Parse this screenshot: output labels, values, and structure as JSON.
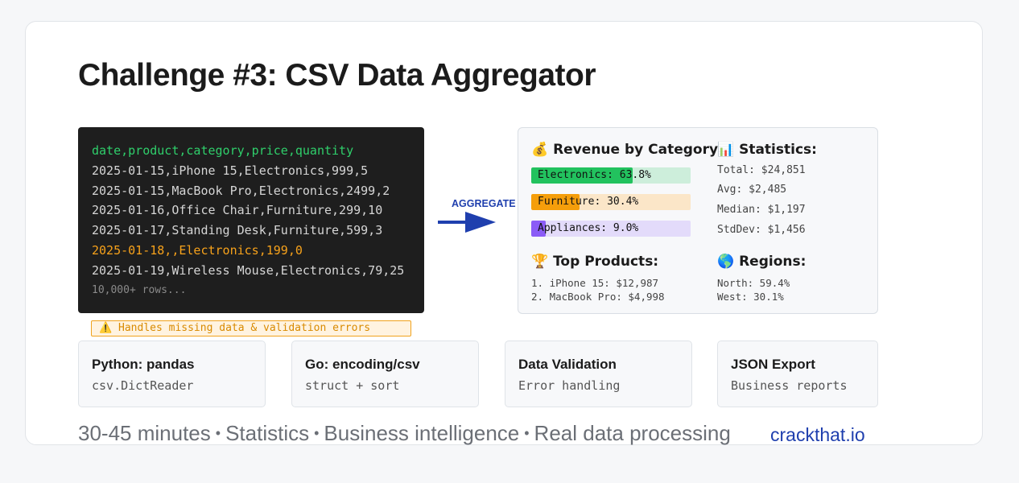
{
  "title": "Challenge #3: CSV Data Aggregator",
  "csv": {
    "header": "date,product,category,price,quantity",
    "rows": [
      "2025-01-15,iPhone 15,Electronics,999,5",
      "2025-01-15,MacBook Pro,Electronics,2499,2",
      "2025-01-16,Office Chair,Furniture,299,10",
      "2025-01-17,Standing Desk,Furniture,599,3"
    ],
    "error_row": "2025-01-18,,Electronics,199,0",
    "last_row": "2025-01-19,Wireless Mouse,Electronics,79,25",
    "more": "10,000+ rows..."
  },
  "warning": "⚠️ Handles missing data & validation errors",
  "arrow_label": "AGGREGATE",
  "panel": {
    "revenue_title": "💰 Revenue by Category:",
    "bars": [
      {
        "label": "Electronics: 63.8%",
        "percent": 63.8,
        "fill": "#22c25e",
        "track": "#cdeedb"
      },
      {
        "label": "Furniture: 30.4%",
        "percent": 30.4,
        "fill": "#f59e0b",
        "track": "#fbe6c8"
      },
      {
        "label": "Appliances: 9.0%",
        "percent": 9.0,
        "fill": "#8b5cf6",
        "track": "#e3dbfa"
      }
    ],
    "stats_title": "📊 Statistics:",
    "stats": [
      "Total: $24,851",
      "Avg: $2,485",
      "Median: $1,197",
      "StdDev: $1,456"
    ],
    "top_title": "🏆 Top Products:",
    "top": [
      "1. iPhone 15: $12,987",
      "2. MacBook Pro: $4,998"
    ],
    "regions_title": "🌎 Regions:",
    "regions": [
      "North: 59.4%",
      "West: 30.1%"
    ]
  },
  "tiles": [
    {
      "title": "Python: pandas",
      "sub": "csv.DictReader"
    },
    {
      "title": "Go: encoding/csv",
      "sub": "struct + sort"
    },
    {
      "title": "Data Validation",
      "sub": "Error handling"
    },
    {
      "title": "JSON Export",
      "sub": "Business reports"
    }
  ],
  "footer": {
    "items": [
      "30-45 minutes",
      "Statistics",
      "Business intelligence",
      "Real data processing"
    ],
    "separator": "•"
  },
  "brand": "crackthat.io"
}
